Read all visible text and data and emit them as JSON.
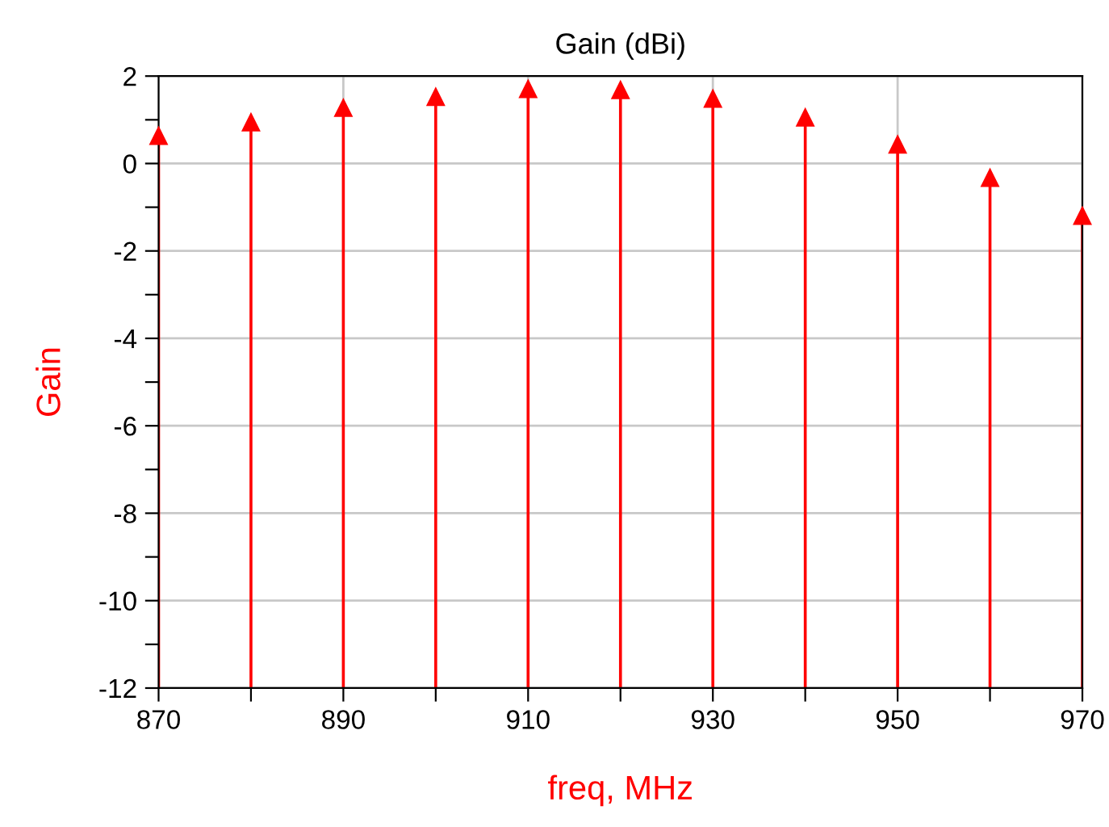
{
  "chart_data": {
    "type": "lollipop",
    "title": "Gain (dBi)",
    "xlabel": "freq, MHz",
    "ylabel": "Gain",
    "x": [
      870,
      880,
      890,
      900,
      910,
      920,
      930,
      940,
      950,
      960,
      970
    ],
    "series": [
      {
        "color": "#ff0000",
        "values": [
          0.63,
          0.94,
          1.27,
          1.52,
          1.7,
          1.68,
          1.48,
          1.05,
          0.43,
          -0.33,
          -1.2
        ]
      }
    ],
    "xlim": [
      870,
      970
    ],
    "xticks": [
      870,
      {
        "value": 880,
        "label": null
      },
      890,
      {
        "value": 900,
        "label": null
      },
      910,
      {
        "value": 920,
        "label": null
      },
      930,
      {
        "value": 940,
        "label": null
      },
      950,
      {
        "value": 960,
        "label": null
      },
      970
    ],
    "ylim": [
      -12,
      2
    ],
    "yticks": [
      -12,
      {
        "value": -11,
        "label": null
      },
      -10,
      {
        "value": -9,
        "label": null
      },
      -8,
      {
        "value": -7,
        "label": null
      },
      -6,
      {
        "value": -5,
        "label": null
      },
      -4,
      {
        "value": -3,
        "label": null
      },
      -2,
      {
        "value": -1,
        "label": null
      },
      0,
      {
        "value": 1,
        "label": null
      },
      2
    ],
    "grid": true,
    "marker": "triangle"
  }
}
